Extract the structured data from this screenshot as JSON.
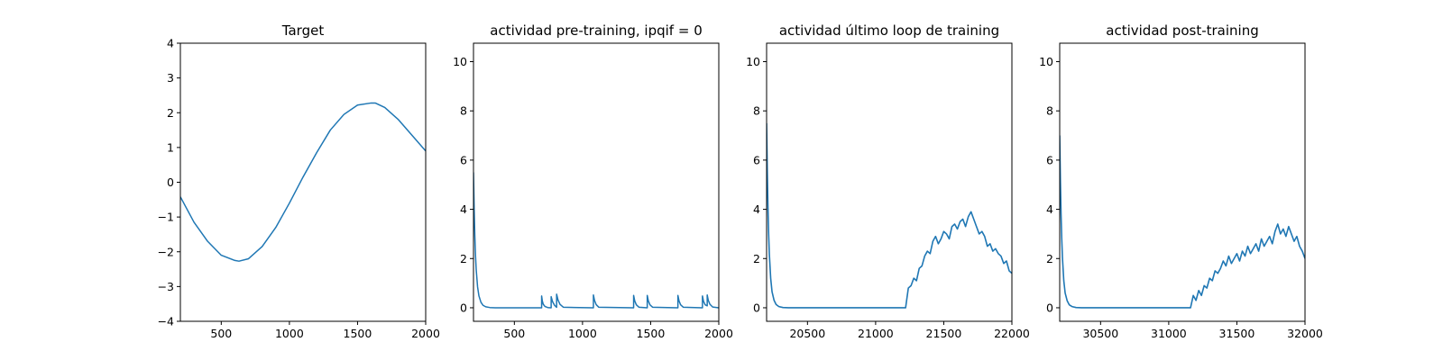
{
  "chart_data": [
    {
      "type": "line",
      "title": "Target",
      "xlim": [
        200,
        2000
      ],
      "ylim": [
        -4,
        4
      ],
      "xticks": [
        500,
        1000,
        1500,
        2000
      ],
      "yticks": [
        -4,
        -3,
        -2,
        -1,
        0,
        1,
        2,
        3,
        4
      ],
      "xtick_labels": [
        "500",
        "1000",
        "1500",
        "2000"
      ],
      "ytick_labels": [
        "−4",
        "−3",
        "−2",
        "−1",
        "0",
        "1",
        "2",
        "3",
        "4"
      ],
      "color": "#1f77b4",
      "series": [
        {
          "x": [
            200,
            300,
            400,
            500,
            600,
            630,
            700,
            800,
            900,
            1000,
            1100,
            1200,
            1300,
            1400,
            1500,
            1600,
            1630,
            1700,
            1800,
            1900,
            2000
          ],
          "y": [
            -0.42,
            -1.15,
            -1.7,
            -2.1,
            -2.25,
            -2.27,
            -2.2,
            -1.85,
            -1.3,
            -0.6,
            0.15,
            0.85,
            1.5,
            1.95,
            2.22,
            2.28,
            2.28,
            2.15,
            1.8,
            1.35,
            0.9
          ]
        }
      ]
    },
    {
      "type": "line",
      "title": "actividad pre-training, ipqif = 0",
      "xlim": [
        200,
        2000
      ],
      "ylim": [
        -0.55,
        10.75
      ],
      "xticks": [
        500,
        1000,
        1500,
        2000
      ],
      "yticks": [
        0,
        2,
        4,
        6,
        8,
        10
      ],
      "xtick_labels": [
        "500",
        "1000",
        "1500",
        "2000"
      ],
      "ytick_labels": [
        "0",
        "2",
        "4",
        "6",
        "8",
        "10"
      ],
      "color": "#1f77b4",
      "series": [
        {
          "x": [
            200,
            205,
            210,
            215,
            220,
            230,
            240,
            255,
            270,
            290,
            320,
            360,
            700,
            700,
            705,
            712,
            725,
            745,
            770,
            770,
            780,
            795,
            810,
            810,
            820,
            835,
            860,
            1080,
            1080,
            1088,
            1100,
            1120,
            1375,
            1375,
            1383,
            1395,
            1415,
            1475,
            1475,
            1483,
            1495,
            1515,
            1700,
            1700,
            1708,
            1720,
            1740,
            1880,
            1880,
            1888,
            1900,
            1915,
            1915,
            1923,
            1935,
            1955,
            2000
          ],
          "y": [
            5.5,
            4.0,
            2.9,
            2.1,
            1.55,
            0.85,
            0.48,
            0.22,
            0.1,
            0.04,
            0.01,
            0.0,
            0.0,
            0.48,
            0.28,
            0.14,
            0.05,
            0.01,
            0.0,
            0.45,
            0.25,
            0.1,
            0.02,
            0.55,
            0.32,
            0.14,
            0.02,
            0.0,
            0.52,
            0.3,
            0.13,
            0.02,
            0.0,
            0.5,
            0.28,
            0.12,
            0.02,
            0.0,
            0.5,
            0.28,
            0.12,
            0.02,
            0.0,
            0.5,
            0.28,
            0.12,
            0.02,
            0.0,
            0.48,
            0.26,
            0.12,
            0.08,
            0.52,
            0.3,
            0.14,
            0.03,
            0.0
          ]
        }
      ]
    },
    {
      "type": "line",
      "title": "actividad último loop de training",
      "xlim": [
        20200,
        22000
      ],
      "ylim": [
        -0.55,
        10.75
      ],
      "xticks": [
        20500,
        21000,
        21500,
        22000
      ],
      "yticks": [
        0,
        2,
        4,
        6,
        8,
        10
      ],
      "xtick_labels": [
        "20500",
        "21000",
        "21500",
        "22000"
      ],
      "ytick_labels": [
        "0",
        "2",
        "4",
        "6",
        "8",
        "10"
      ],
      "color": "#1f77b4",
      "series": [
        {
          "x": [
            20200,
            20205,
            20210,
            20215,
            20220,
            20230,
            20240,
            20255,
            20270,
            20290,
            20320,
            20360,
            21220,
            21240,
            21260,
            21280,
            21300,
            21320,
            21340,
            21360,
            21380,
            21400,
            21420,
            21440,
            21460,
            21480,
            21500,
            21520,
            21540,
            21560,
            21580,
            21600,
            21620,
            21640,
            21660,
            21680,
            21700,
            21720,
            21740,
            21760,
            21780,
            21800,
            21820,
            21840,
            21860,
            21880,
            21900,
            21920,
            21940,
            21960,
            21980,
            22000
          ],
          "y": [
            7.5,
            5.6,
            4.1,
            3.0,
            2.2,
            1.2,
            0.65,
            0.3,
            0.13,
            0.05,
            0.01,
            0.0,
            0.0,
            0.8,
            0.9,
            1.2,
            1.1,
            1.6,
            1.7,
            2.1,
            2.3,
            2.2,
            2.7,
            2.9,
            2.6,
            2.8,
            3.1,
            3.0,
            2.8,
            3.3,
            3.4,
            3.2,
            3.5,
            3.6,
            3.3,
            3.7,
            3.9,
            3.6,
            3.3,
            3.0,
            3.1,
            2.9,
            2.5,
            2.6,
            2.3,
            2.4,
            2.2,
            2.1,
            1.8,
            1.9,
            1.5,
            1.4
          ]
        }
      ]
    },
    {
      "type": "line",
      "title": "actividad post-training",
      "xlim": [
        30200,
        32000
      ],
      "ylim": [
        -0.55,
        10.75
      ],
      "xticks": [
        30500,
        31000,
        31500,
        32000
      ],
      "yticks": [
        0,
        2,
        4,
        6,
        8,
        10
      ],
      "xtick_labels": [
        "30500",
        "31000",
        "31500",
        "32000"
      ],
      "ytick_labels": [
        "0",
        "2",
        "4",
        "6",
        "8",
        "10"
      ],
      "color": "#1f77b4",
      "series": [
        {
          "x": [
            30200,
            30205,
            30210,
            30215,
            30220,
            30230,
            30240,
            30255,
            30270,
            30290,
            30320,
            30360,
            31160,
            31180,
            31200,
            31220,
            31240,
            31260,
            31280,
            31300,
            31320,
            31340,
            31360,
            31380,
            31400,
            31420,
            31440,
            31460,
            31480,
            31500,
            31520,
            31540,
            31560,
            31580,
            31600,
            31620,
            31640,
            31660,
            31680,
            31700,
            31720,
            31740,
            31760,
            31780,
            31800,
            31820,
            31840,
            31860,
            31880,
            31900,
            31920,
            31940,
            31960,
            31980,
            32000
          ],
          "y": [
            7.0,
            5.2,
            3.8,
            2.8,
            2.05,
            1.1,
            0.6,
            0.28,
            0.12,
            0.05,
            0.01,
            0.0,
            0.0,
            0.5,
            0.3,
            0.7,
            0.5,
            0.9,
            0.8,
            1.2,
            1.1,
            1.5,
            1.4,
            1.6,
            1.9,
            1.7,
            2.1,
            1.8,
            2.0,
            2.2,
            1.9,
            2.3,
            2.1,
            2.5,
            2.2,
            2.4,
            2.6,
            2.3,
            2.8,
            2.5,
            2.7,
            2.9,
            2.6,
            3.1,
            3.4,
            3.0,
            3.2,
            2.9,
            3.3,
            3.0,
            2.7,
            2.9,
            2.5,
            2.3,
            2.0
          ]
        }
      ]
    }
  ]
}
